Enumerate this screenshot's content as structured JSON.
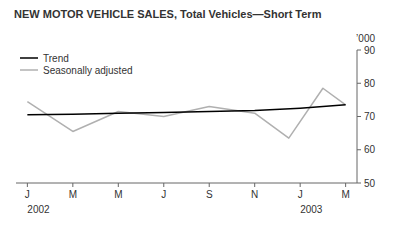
{
  "chart_data": {
    "type": "line",
    "title": "NEW MOTOR VEHICLE SALES, Total Vehicles—Short Term",
    "y_label": "’000",
    "xlim": [
      -0.5,
      14.5
    ],
    "xticks": [
      {
        "value": 0,
        "label": "J"
      },
      {
        "value": 2,
        "label": "M"
      },
      {
        "value": 4,
        "label": "M"
      },
      {
        "value": 6,
        "label": "J"
      },
      {
        "value": 8,
        "label": "S"
      },
      {
        "value": 10,
        "label": "N"
      },
      {
        "value": 12,
        "label": "J"
      },
      {
        "value": 14,
        "label": "M"
      }
    ],
    "ylim": [
      50,
      90
    ],
    "yticks": [
      50,
      60,
      70,
      80,
      90
    ],
    "annotations": [
      {
        "text": "2002",
        "x": 0
      },
      {
        "text": "2003",
        "x": 12
      }
    ],
    "series": [
      {
        "name": "Trend",
        "color": "#000000",
        "x": [
          0,
          2,
          4,
          6,
          8,
          10,
          12,
          14
        ],
        "values": [
          70.5,
          70.7,
          71.0,
          71.2,
          71.5,
          71.8,
          72.5,
          73.5
        ]
      },
      {
        "name": "Seasonally adjusted",
        "color": "#b0b0b0",
        "x": [
          0,
          2,
          4,
          6,
          8,
          10,
          11.5,
          13.0,
          14
        ],
        "values": [
          74.5,
          65.5,
          71.5,
          70.0,
          73.0,
          71.0,
          63.5,
          78.5,
          73.5
        ]
      }
    ],
    "legend": "upper left",
    "grid": false
  }
}
